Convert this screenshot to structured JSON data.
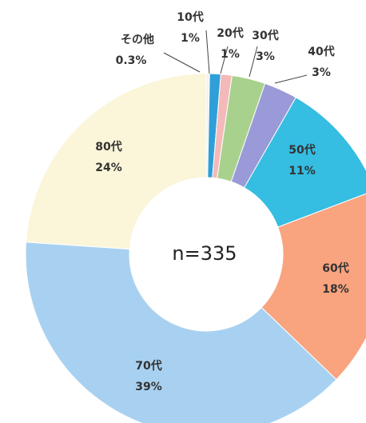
{
  "chart_data": {
    "type": "donut",
    "categories": [
      "その他",
      "10代",
      "20代",
      "30代",
      "40代",
      "50代",
      "60代",
      "70代",
      "80代"
    ],
    "values": [
      0.3,
      1,
      1,
      3,
      3,
      11,
      18,
      39,
      24
    ],
    "value_labels": [
      "0.3%",
      "1%",
      "1%",
      "3%",
      "3%",
      "11%",
      "18%",
      "39%",
      "24%"
    ],
    "colors": [
      "#f2f2f2",
      "#2e9fd8",
      "#f4b9b9",
      "#a9d18e",
      "#9a9ad8",
      "#35bde2",
      "#f9a37f",
      "#a8d1f1",
      "#fbf5d9"
    ],
    "annotation": "n=335"
  }
}
